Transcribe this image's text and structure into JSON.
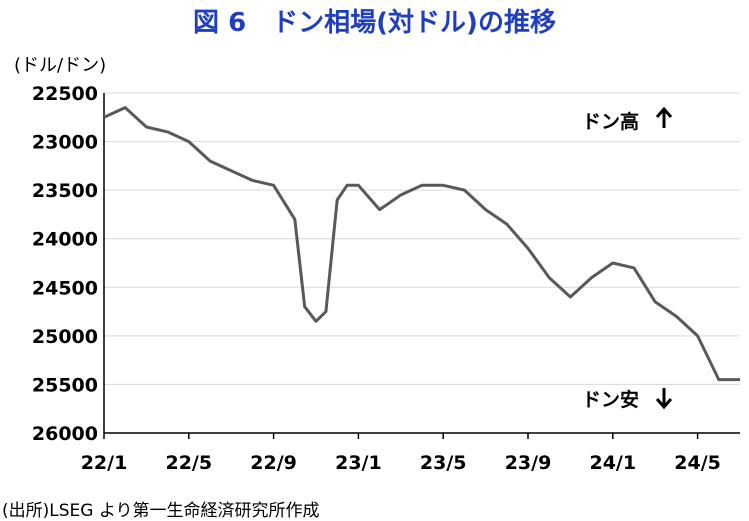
{
  "title": "図 6　ドン相場(対ドル)の推移",
  "unit_label": "(ドル/ドン)",
  "source_note": "(出所)LSEG より第一生命経済研究所作成",
  "colors": {
    "title": "#1f3fbf",
    "line": "#595959",
    "grid": "#d9d9d9",
    "axis": "#000000"
  },
  "chart_data": {
    "type": "line",
    "title": "図 6　ドン相場(対ドル)の推移",
    "ylabel": "(ドル/ドン)",
    "y_inverted": true,
    "ylim": [
      22500,
      26000
    ],
    "y_ticks": [
      22500,
      23000,
      23500,
      24000,
      24500,
      25000,
      25500,
      26000
    ],
    "x_tick_labels": [
      "22/1",
      "22/5",
      "22/9",
      "23/1",
      "23/5",
      "23/9",
      "24/1",
      "24/5"
    ],
    "x_range_months": [
      "2022-01",
      "2024-07"
    ],
    "grid": "horizontal",
    "annotations": [
      {
        "text": "ドン高",
        "arrow": "up",
        "position": "top-right"
      },
      {
        "text": "ドン安",
        "arrow": "down",
        "position": "bottom-right"
      }
    ],
    "series": [
      {
        "x": [
          "2022-01",
          "2022-02",
          "2022-03",
          "2022-04",
          "2022-05",
          "2022-06",
          "2022-07",
          "2022-08",
          "2022-09",
          "2022-10",
          "2022-10-15",
          "2022-11",
          "2022-11-15",
          "2022-12",
          "2022-12-15",
          "2023-01",
          "2023-02",
          "2023-03",
          "2023-04",
          "2023-05",
          "2023-06",
          "2023-07",
          "2023-08",
          "2023-09",
          "2023-10",
          "2023-11",
          "2023-12",
          "2024-01",
          "2024-02",
          "2024-03",
          "2024-04",
          "2024-05",
          "2024-06",
          "2024-07"
        ],
        "values": [
          22750,
          22650,
          22850,
          22900,
          23000,
          23200,
          23300,
          23400,
          23450,
          23800,
          24700,
          24850,
          24750,
          23600,
          23450,
          23450,
          23700,
          23550,
          23450,
          23450,
          23500,
          23700,
          23850,
          24100,
          24400,
          24600,
          24400,
          24250,
          24300,
          24650,
          24800,
          25000,
          25450,
          25450
        ]
      }
    ]
  }
}
